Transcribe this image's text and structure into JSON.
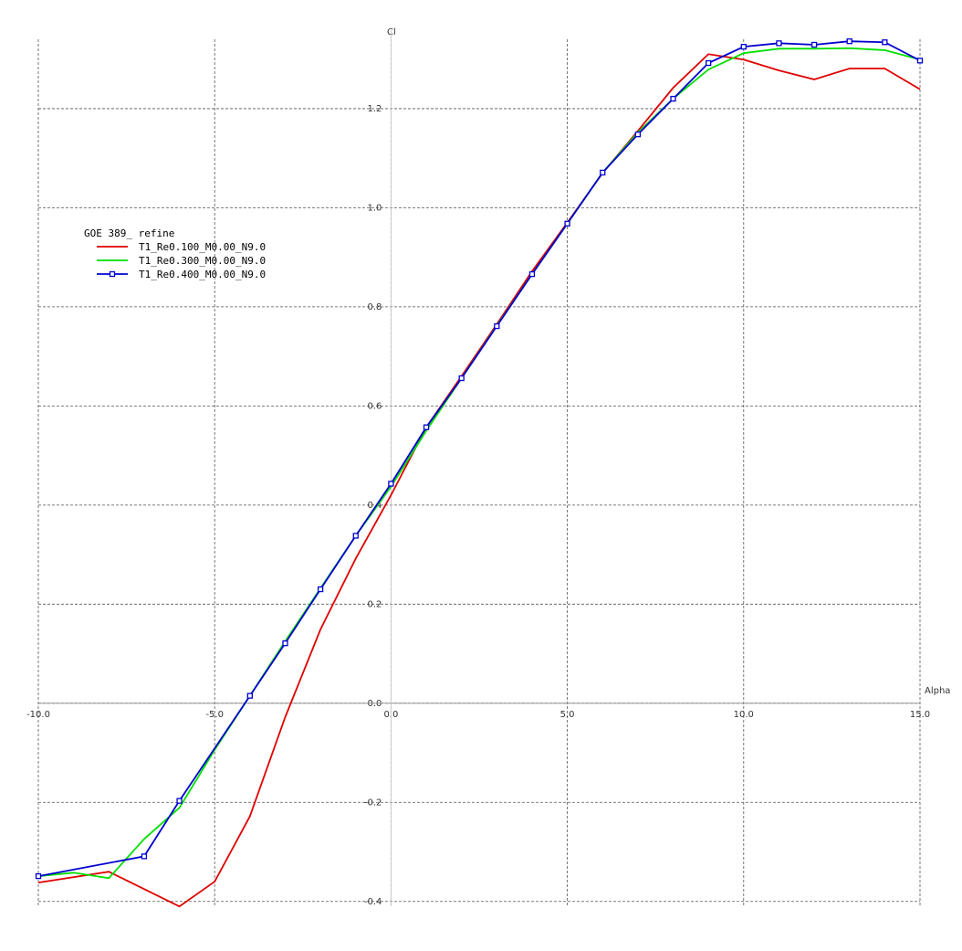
{
  "chart_data": {
    "type": "line",
    "legend_title": "GOE 389_ refine",
    "x_label": "Alpha",
    "y_label": "Cl",
    "xlim": [
      -10,
      15
    ],
    "ylim": [
      -0.42,
      1.34
    ],
    "xticks": [
      {
        "value": -10,
        "label": "-10.0"
      },
      {
        "value": -5,
        "label": "-5.0"
      },
      {
        "value": 0,
        "label": "0.0"
      },
      {
        "value": 5,
        "label": "5.0"
      },
      {
        "value": 10,
        "label": "10.0"
      },
      {
        "value": 15,
        "label": "15.0"
      }
    ],
    "yticks": [
      {
        "value": -0.4,
        "label": "-0.4"
      },
      {
        "value": -0.2,
        "label": "-0.2"
      },
      {
        "value": 0,
        "label": "0.0"
      },
      {
        "value": 0.2,
        "label": "0.2"
      },
      {
        "value": 0.4,
        "label": "0.4"
      },
      {
        "value": 0.6,
        "label": "0.6"
      },
      {
        "value": 0.8,
        "label": "0.8"
      },
      {
        "value": 1.0,
        "label": "1.0"
      },
      {
        "value": 1.2,
        "label": "1.2"
      }
    ],
    "grid": true,
    "series": [
      {
        "name": "T1_Re0.100_M0.00_N9.0",
        "color": "#e00000",
        "markers": false,
        "x": [
          -10,
          -8,
          -6,
          -5,
          -4,
          -3,
          -2,
          -1,
          0,
          1,
          2,
          3,
          4,
          5,
          6,
          7,
          8,
          9,
          10,
          11,
          12,
          13,
          14,
          15
        ],
        "values": [
          -0.362,
          -0.34,
          -0.41,
          -0.36,
          -0.228,
          -0.028,
          0.149,
          0.292,
          0.42,
          0.557,
          0.66,
          0.765,
          0.872,
          0.97,
          1.07,
          1.155,
          1.242,
          1.31,
          1.299,
          1.277,
          1.259,
          1.281,
          1.281,
          1.239
        ]
      },
      {
        "name": "T1_Re0.300_M0.00_N9.0",
        "color": "#00e000",
        "markers": false,
        "x": [
          -10,
          -9,
          -8,
          -7,
          -6,
          -5,
          -4,
          -3,
          -2,
          -1,
          0,
          1,
          2,
          3,
          4,
          5,
          6,
          7,
          8,
          9,
          10,
          11,
          12,
          13,
          14,
          15
        ],
        "values": [
          -0.349,
          -0.342,
          -0.353,
          -0.274,
          -0.211,
          -0.094,
          0.015,
          0.125,
          0.232,
          0.338,
          0.437,
          0.55,
          0.656,
          0.762,
          0.866,
          0.968,
          1.071,
          1.152,
          1.22,
          1.279,
          1.312,
          1.321,
          1.321,
          1.322,
          1.318,
          1.299
        ]
      },
      {
        "name": "T1_Re0.400_M0.00_N9.0",
        "color": "#0000d0",
        "markers": true,
        "x": [
          -10,
          -7,
          -6,
          -4,
          -3,
          -2,
          -1,
          0,
          1,
          2,
          3,
          4,
          5,
          6,
          7,
          8,
          9,
          10,
          11,
          12,
          13,
          14,
          15
        ],
        "values": [
          -0.349,
          -0.309,
          -0.197,
          0.015,
          0.121,
          0.23,
          0.338,
          0.443,
          0.557,
          0.656,
          0.761,
          0.866,
          0.968,
          1.071,
          1.148,
          1.22,
          1.292,
          1.325,
          1.332,
          1.329,
          1.336,
          1.334,
          1.297
        ]
      }
    ]
  }
}
